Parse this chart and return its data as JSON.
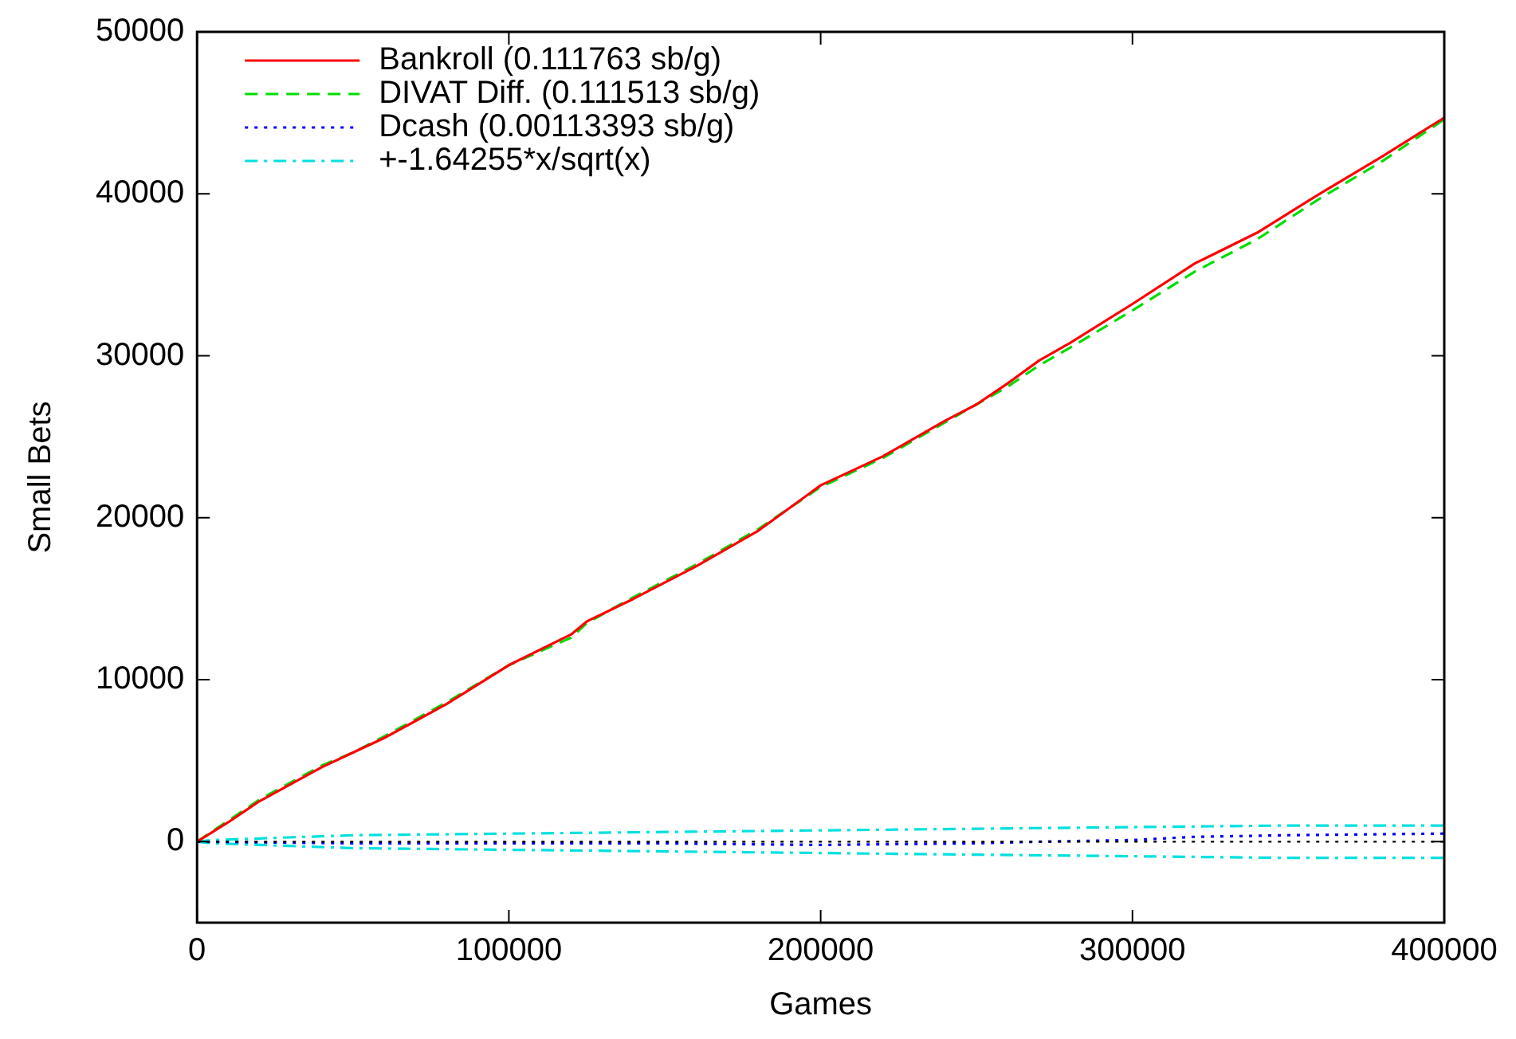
{
  "chart_data": {
    "type": "line",
    "xlabel": "Games",
    "ylabel": "Small Bets",
    "xlim": [
      0,
      400000
    ],
    "xticks": [
      0,
      100000,
      200000,
      300000,
      400000
    ],
    "ylim": [
      -5000,
      50000
    ],
    "yticks": [
      0,
      10000,
      20000,
      30000,
      40000,
      50000
    ],
    "grid": false,
    "legend": "top left",
    "marker": "none",
    "ref_lines": [
      {
        "axis": "y",
        "value": 0,
        "color": "#000000",
        "line_style": "dotted"
      }
    ],
    "series": [
      {
        "name": "Bankroll (0.111763 sb/g)",
        "color": "#ff0000",
        "line_style": "solid",
        "x": [
          0,
          10000,
          20000,
          40000,
          50000,
          60000,
          80000,
          100000,
          120000,
          125000,
          140000,
          160000,
          180000,
          200000,
          220000,
          240000,
          250000,
          260000,
          270000,
          280000,
          300000,
          320000,
          340000,
          360000,
          380000,
          400000
        ],
        "values": [
          0,
          1200,
          2500,
          4600,
          5500,
          6400,
          8500,
          10900,
          12800,
          13600,
          15000,
          17000,
          19200,
          22000,
          23800,
          26000,
          27000,
          28300,
          29700,
          30800,
          33200,
          35700,
          37600,
          40000,
          42300,
          44700
        ]
      },
      {
        "name": "DIVAT Diff. (0.111513 sb/g)",
        "color": "#00dd00",
        "line_style": "dashed",
        "x": [
          0,
          10000,
          20000,
          40000,
          50000,
          60000,
          80000,
          100000,
          120000,
          125000,
          140000,
          160000,
          180000,
          200000,
          220000,
          240000,
          250000,
          260000,
          270000,
          280000,
          300000,
          320000,
          340000,
          360000,
          380000,
          400000
        ],
        "values": [
          0,
          1300,
          2600,
          4700,
          5500,
          6500,
          8600,
          10900,
          12600,
          13500,
          15100,
          17100,
          19300,
          21900,
          23700,
          25900,
          27000,
          28100,
          29400,
          30500,
          32800,
          35200,
          37200,
          39700,
          42000,
          44600
        ]
      },
      {
        "name": "Dcash (0.00113393 sb/g)",
        "color": "#0000ff",
        "line_style": "dotted",
        "x": [
          0,
          50000,
          100000,
          150000,
          200000,
          250000,
          270000,
          300000,
          320000,
          350000,
          400000
        ],
        "values": [
          0,
          -100,
          -100,
          -100,
          -200,
          -100,
          0,
          100,
          300,
          400,
          500
        ]
      },
      {
        "name": "+-1.64255*x/sqrt(x)",
        "color": "#00e0e0",
        "line_style": "dashdot",
        "x": [
          0,
          5000,
          20000,
          50000,
          100000,
          150000,
          200000,
          250000,
          300000,
          350000,
          400000
        ],
        "values": [
          0,
          100,
          200,
          400,
          500,
          600,
          700,
          800,
          900,
          1000,
          1000
        ]
      },
      {
        "color": "#00e0e0",
        "line_style": "dashdot",
        "x": [
          0,
          5000,
          20000,
          50000,
          100000,
          150000,
          200000,
          250000,
          300000,
          350000,
          400000
        ],
        "values": [
          0,
          -100,
          -200,
          -400,
          -500,
          -600,
          -700,
          -800,
          -900,
          -1000,
          -1000
        ]
      }
    ]
  }
}
